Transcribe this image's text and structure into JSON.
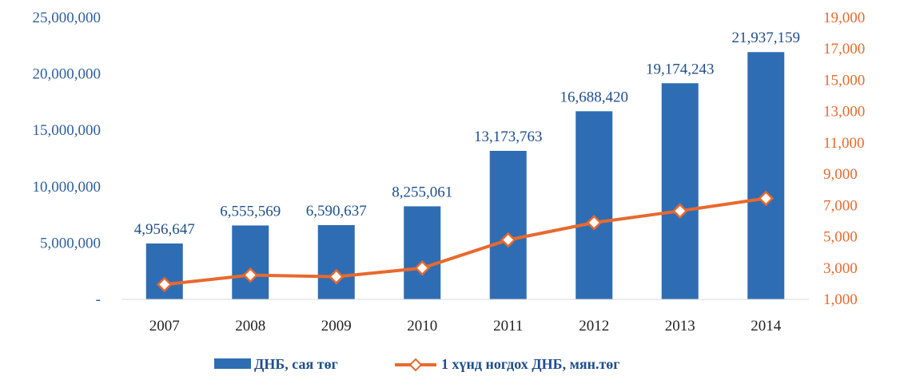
{
  "chart_data": {
    "type": "bar",
    "categories": [
      "2007",
      "2008",
      "2009",
      "2010",
      "2011",
      "2012",
      "2013",
      "2014"
    ],
    "series": [
      {
        "name": "ДНБ, сая төг",
        "type": "bar",
        "axis": "left",
        "values": [
          4956647,
          6555569,
          6590637,
          8255061,
          13173763,
          16688420,
          19174243,
          21937159
        ],
        "labels": [
          "4,956,647",
          "6,555,569",
          "6,590,637",
          "8,255,061",
          "13,173,763",
          "16,688,420",
          "19,174,243",
          "21,937,159"
        ],
        "color": "#2e6db4"
      },
      {
        "name": "1 хүнд ногдох ДНБ, мян.төг",
        "type": "line",
        "axis": "right",
        "values": [
          1950,
          2550,
          2450,
          3000,
          4800,
          5900,
          6650,
          7450
        ],
        "color": "#e8692e"
      }
    ],
    "ylim_left": [
      0,
      25000000
    ],
    "yticks_left": [
      "-",
      "5,000,000",
      "10,000,000",
      "15,000,000",
      "20,000,000",
      "25,000,000"
    ],
    "ylim_right": [
      1000,
      19000
    ],
    "yticks_right": [
      "1,000",
      "3,000",
      "5,000",
      "7,000",
      "9,000",
      "11,000",
      "13,000",
      "15,000",
      "17,000",
      "19,000"
    ],
    "left_axis_color": "#2e5f9e",
    "right_axis_color": "#e8692e",
    "grid": false,
    "legend_position": "bottom"
  }
}
